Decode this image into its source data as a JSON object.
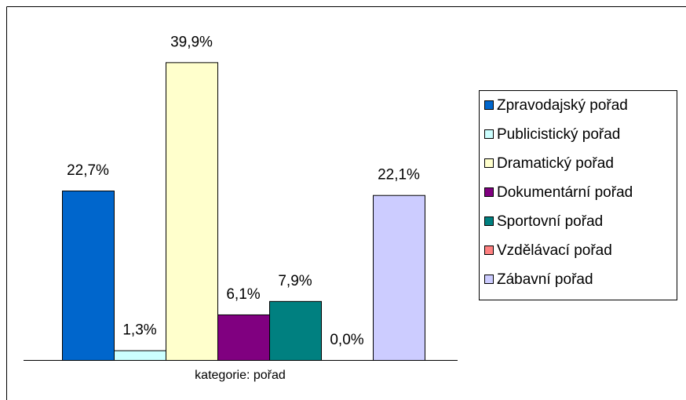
{
  "chart_data": {
    "type": "bar",
    "categories": [
      "kategorie: pořad"
    ],
    "series": [
      {
        "name": "Zpravodajský pořad",
        "color": "#0066cc",
        "values": [
          22.7
        ],
        "value_labels": [
          "22,7%"
        ]
      },
      {
        "name": "Publicistický pořad",
        "color": "#ccffff",
        "values": [
          1.3
        ],
        "value_labels": [
          "1,3%"
        ]
      },
      {
        "name": "Dramatický pořad",
        "color": "#ffffcc",
        "values": [
          39.9
        ],
        "value_labels": [
          "39,9%"
        ]
      },
      {
        "name": "Dokumentární pořad",
        "color": "#800080",
        "values": [
          6.1
        ],
        "value_labels": [
          "6,1%"
        ]
      },
      {
        "name": "Sportovní pořad",
        "color": "#008080",
        "values": [
          7.9
        ],
        "value_labels": [
          "7,9%"
        ]
      },
      {
        "name": "Vzdělávací pořad",
        "color": "#ff8080",
        "values": [
          0.0
        ],
        "value_labels": [
          "0,0%"
        ]
      },
      {
        "name": "Zábavní pořad",
        "color": "#ccccff",
        "values": [
          22.1
        ],
        "value_labels": [
          "22,1%"
        ]
      }
    ],
    "legend": "right"
  }
}
